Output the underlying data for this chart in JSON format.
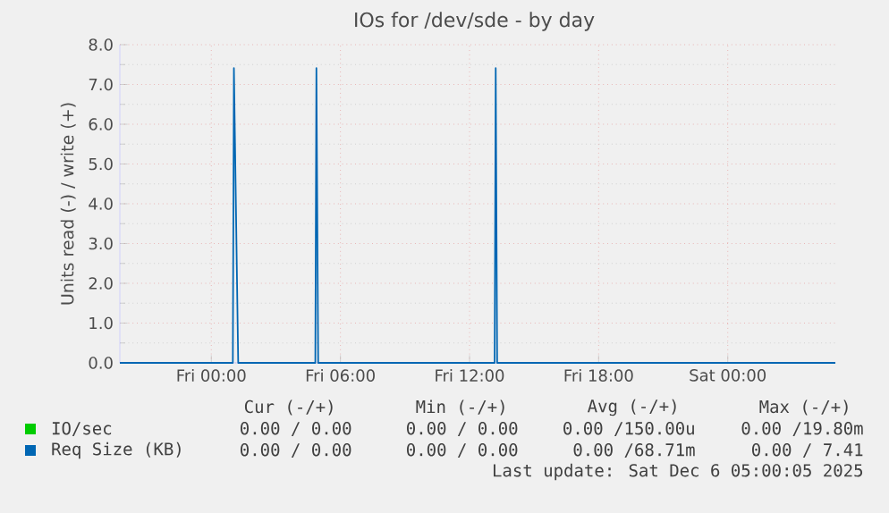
{
  "chart_data": {
    "type": "line",
    "title": "IOs for /dev/sde - by day",
    "ylabel": "Units read (-) / write (+)",
    "xlim": [
      "2025-12-04T19:45",
      "2025-12-06T05:00"
    ],
    "xticks": [
      {
        "value": "2025-12-05T00:00",
        "label": "Fri 00:00"
      },
      {
        "value": "2025-12-05T06:00",
        "label": "Fri 06:00"
      },
      {
        "value": "2025-12-05T12:00",
        "label": "Fri 12:00"
      },
      {
        "value": "2025-12-05T18:00",
        "label": "Fri 18:00"
      },
      {
        "value": "2025-12-06T00:00",
        "label": "Sat 00:00"
      }
    ],
    "ylim": [
      0,
      8
    ],
    "yticks": [
      {
        "value": 0,
        "label": "0.0"
      },
      {
        "value": 1,
        "label": "1.0"
      },
      {
        "value": 2,
        "label": "2.0"
      },
      {
        "value": 3,
        "label": "3.0"
      },
      {
        "value": 4,
        "label": "4.0"
      },
      {
        "value": 5,
        "label": "5.0"
      },
      {
        "value": 6,
        "label": "6.0"
      },
      {
        "value": 7,
        "label": "7.0"
      },
      {
        "value": 8,
        "label": "8.0"
      }
    ],
    "grid": true,
    "legend": "bottom",
    "series": [
      {
        "name": "IO/sec",
        "color": "#00cc00"
      },
      {
        "name": "Req Size (KB)",
        "color": "#0066b3",
        "x": [
          "2025-12-04T19:45",
          "2025-12-05T01:00",
          "2025-12-05T01:03",
          "2025-12-05T01:15",
          "2025-12-05T04:50",
          "2025-12-05T04:53",
          "2025-12-05T04:58",
          "2025-12-05T13:10",
          "2025-12-05T13:13",
          "2025-12-05T13:17",
          "2025-12-06T05:00"
        ],
        "values": [
          0,
          0,
          7.41,
          0,
          0,
          7.41,
          0,
          0,
          7.41,
          0,
          0
        ]
      }
    ],
    "annotations": [
      "Cur (-/+)",
      "Min (-/+)",
      "Avg (-/+)",
      "Max (-/+)",
      "0.00 / 0.00",
      "0.00 / 0.00",
      "0.00 /150.00u",
      "0.00 /19.80m",
      "0.00 / 0.00",
      "0.00 / 0.00",
      "0.00 /68.71m",
      "0.00 / 7.41",
      "Last update: Sat Dec  6 05:00:05 2025"
    ]
  }
}
